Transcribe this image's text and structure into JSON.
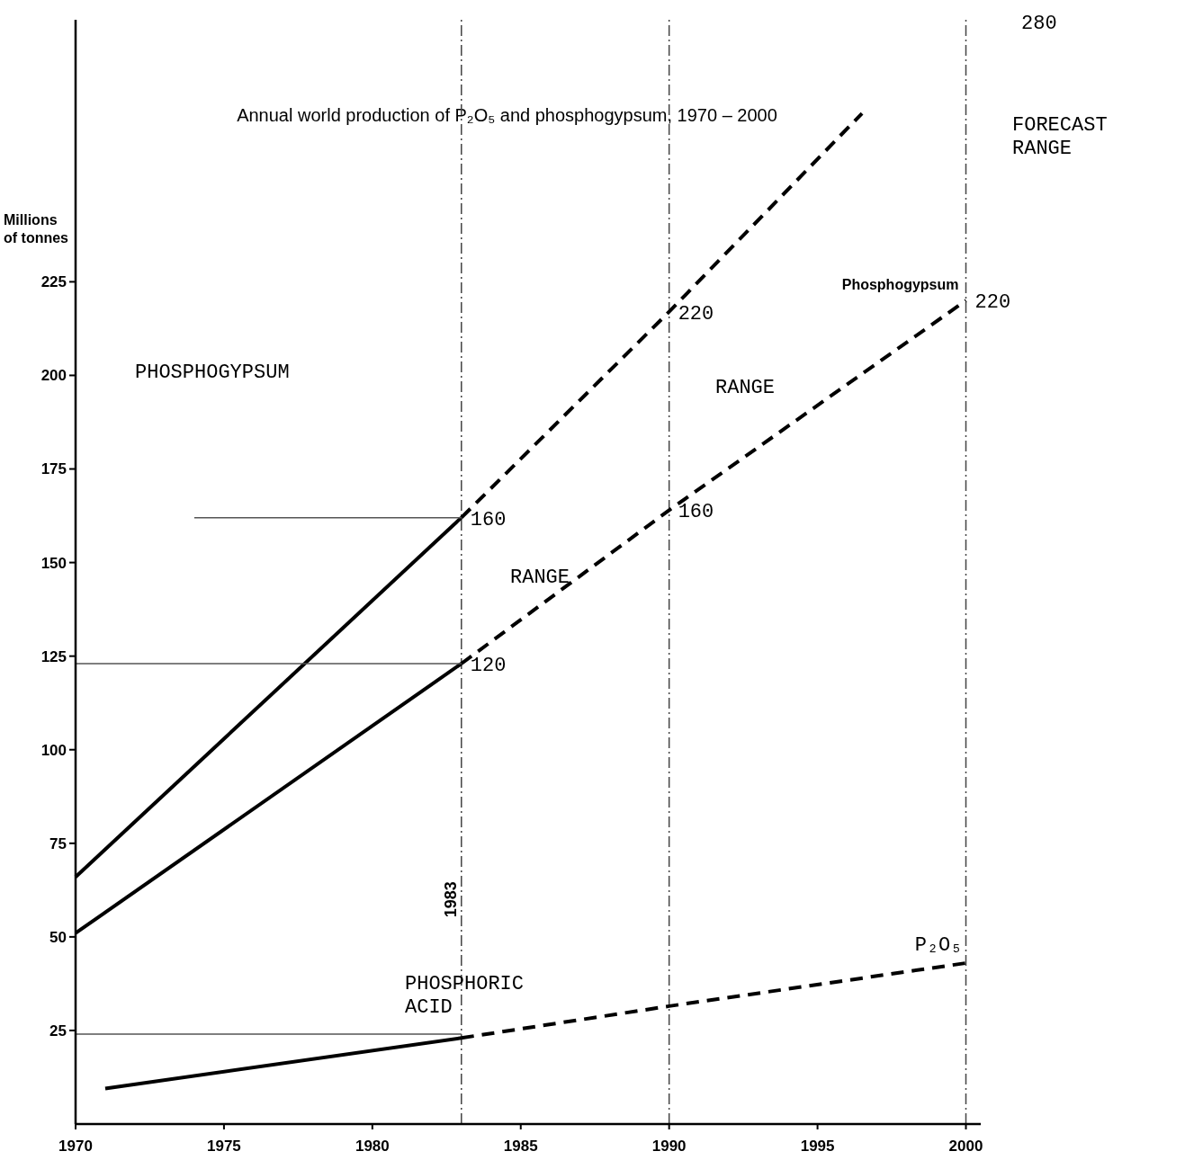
{
  "chart_data": {
    "type": "line",
    "title": "Annual world production of P₂O₅ and phosphogypsum, 1970 – 2000",
    "ylabel": "Millions of tonnes",
    "xlim": [
      1970,
      2000.5
    ],
    "xticks": [
      1970,
      1975,
      1980,
      1985,
      1990,
      1995,
      2000
    ],
    "ylim": [
      0,
      295
    ],
    "yticks": [
      25,
      50,
      75,
      100,
      125,
      150,
      175,
      200,
      225
    ],
    "grid": false,
    "series": [
      {
        "line_style": "solid",
        "color": "#000000",
        "x": [
          1970,
          1983
        ],
        "values": [
          66,
          162
        ]
      },
      {
        "line_style": "dashed",
        "color": "#000000",
        "x": [
          1983,
          1990,
          1996.5
        ],
        "values": [
          162,
          217,
          270
        ]
      },
      {
        "line_style": "solid",
        "color": "#000000",
        "x": [
          1970,
          1983
        ],
        "values": [
          51,
          123
        ]
      },
      {
        "line_style": "dashed",
        "color": "#000000",
        "x": [
          1983,
          1990,
          2000
        ],
        "values": [
          123,
          164,
          220
        ]
      },
      {
        "line_style": "solid",
        "color": "#000000",
        "x": [
          1971,
          1983
        ],
        "values": [
          9.5,
          23
        ]
      },
      {
        "line_style": "dashed",
        "color": "#000000",
        "x": [
          1983,
          1990,
          2000
        ],
        "values": [
          23,
          31.5,
          43
        ]
      },
      {
        "line_style": "solid",
        "color": "#555555",
        "x": [
          1974,
          1983
        ],
        "values": [
          162,
          162
        ]
      },
      {
        "line_style": "solid",
        "color": "#555555",
        "x": [
          1970,
          1983
        ],
        "values": [
          123,
          123
        ]
      },
      {
        "line_style": "solid",
        "color": "#555555",
        "x": [
          1970,
          1983
        ],
        "values": [
          24,
          24
        ]
      }
    ],
    "ref_lines": [
      {
        "axis": "x",
        "value": 1983,
        "label": "1983",
        "line_style": "dashed",
        "color": "#444444"
      },
      {
        "axis": "x",
        "value": 1990,
        "label": null,
        "line_style": "dashed",
        "color": "#444444"
      },
      {
        "axis": "x",
        "value": 2000,
        "label": null,
        "line_style": "dashed",
        "color": "#444444"
      }
    ],
    "annotations": [
      "PHOSPHOGYPSUM",
      {
        "text": "160",
        "x": 1983,
        "y": 162
      },
      {
        "text": "120",
        "x": 1983,
        "y": 123
      },
      "RANGE",
      {
        "text": "220",
        "x": 1990,
        "y": 217
      },
      {
        "text": "160",
        "x": 1990,
        "y": 164
      },
      "RANGE",
      {
        "text": "Phosphogypsum",
        "x": 2000,
        "y": 220
      },
      {
        "text": "220",
        "x": 2000,
        "y": 220
      },
      "280",
      "FORECAST RANGE",
      "PHOSPHORIC ACID",
      {
        "text": "P₂O₅",
        "x": 2000,
        "y": 43
      }
    ]
  }
}
